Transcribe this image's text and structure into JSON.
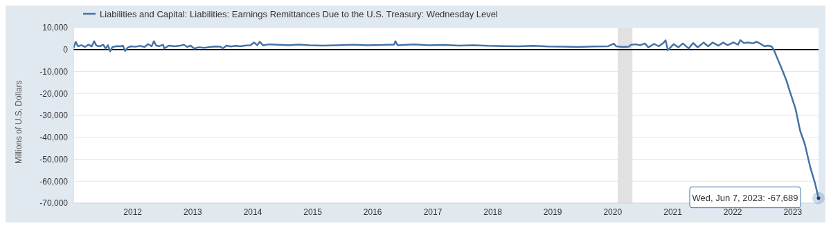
{
  "chart_data": {
    "type": "line",
    "ylabel": "Millions of U.S. Dollars",
    "x": [
      "2011-01-05",
      "2011-01-19",
      "2011-02-02",
      "2011-02-23",
      "2011-03-16",
      "2011-04-06",
      "2011-04-27",
      "2011-05-11",
      "2011-05-25",
      "2011-06-15",
      "2011-07-06",
      "2011-07-20",
      "2011-08-03",
      "2011-08-17",
      "2011-08-31",
      "2011-09-28",
      "2011-10-19",
      "2011-11-02",
      "2011-11-16",
      "2011-11-30",
      "2011-12-21",
      "2012-01-18",
      "2012-02-15",
      "2012-03-14",
      "2012-04-04",
      "2012-04-25",
      "2012-05-09",
      "2012-05-23",
      "2012-06-13",
      "2012-07-04",
      "2012-07-11",
      "2012-08-08",
      "2012-09-12",
      "2012-10-10",
      "2012-11-07",
      "2012-11-28",
      "2012-12-19",
      "2013-01-09",
      "2013-02-06",
      "2013-03-13",
      "2013-04-17",
      "2013-05-15",
      "2013-06-19",
      "2013-07-03",
      "2013-07-24",
      "2013-08-21",
      "2013-09-18",
      "2013-10-16",
      "2013-11-13",
      "2013-12-18",
      "2014-01-08",
      "2014-01-29",
      "2014-02-12",
      "2014-03-05",
      "2014-04-09",
      "2014-06-04",
      "2014-08-06",
      "2014-10-08",
      "2014-12-10",
      "2015-03-04",
      "2015-06-03",
      "2015-09-02",
      "2015-12-02",
      "2016-03-02",
      "2016-05-11",
      "2016-05-18",
      "2016-06-01",
      "2016-09-07",
      "2016-12-07",
      "2017-03-08",
      "2017-06-07",
      "2017-09-06",
      "2017-12-06",
      "2018-03-07",
      "2018-06-06",
      "2018-09-05",
      "2018-12-05",
      "2019-03-06",
      "2019-06-05",
      "2019-09-04",
      "2019-12-04",
      "2020-01-08",
      "2020-01-22",
      "2020-03-04",
      "2020-04-08",
      "2020-04-22",
      "2020-05-20",
      "2020-06-17",
      "2020-07-15",
      "2020-08-05",
      "2020-09-09",
      "2020-10-07",
      "2020-11-04",
      "2020-11-18",
      "2020-12-02",
      "2021-01-06",
      "2021-02-03",
      "2021-03-03",
      "2021-04-07",
      "2021-05-05",
      "2021-06-02",
      "2021-07-07",
      "2021-08-04",
      "2021-09-01",
      "2021-10-06",
      "2021-11-03",
      "2021-12-01",
      "2022-01-05",
      "2022-02-02",
      "2022-02-16",
      "2022-03-09",
      "2022-04-06",
      "2022-05-04",
      "2022-05-25",
      "2022-06-15",
      "2022-07-13",
      "2022-08-03",
      "2022-08-24",
      "2022-09-07",
      "2022-10-05",
      "2022-11-02",
      "2022-11-23",
      "2022-12-14",
      "2023-01-18",
      "2023-02-15",
      "2023-03-15",
      "2023-04-19",
      "2023-05-17",
      "2023-06-07"
    ],
    "series": [
      {
        "name": "Liabilities and Capital: Liabilities: Earnings Remittances Due to the U.S. Treasury: Wednesday Level",
        "color": "#4572a7",
        "values": [
          500,
          3500,
          1500,
          2000,
          1200,
          2200,
          1500,
          3800,
          1800,
          1500,
          2200,
          500,
          2000,
          -800,
          1200,
          1600,
          1500,
          1800,
          -600,
          800,
          1500,
          1300,
          1700,
          1200,
          2500,
          1500,
          3800,
          1800,
          1600,
          2200,
          500,
          1800,
          1500,
          1700,
          2200,
          1200,
          1800,
          500,
          1000,
          800,
          1200,
          1400,
          1300,
          500,
          1800,
          1400,
          1700,
          1500,
          1800,
          2000,
          3200,
          2000,
          3600,
          1900,
          2400,
          2200,
          2000,
          2300,
          2000,
          1800,
          2000,
          2200,
          2000,
          2100,
          2300,
          3800,
          2000,
          2400,
          2000,
          2100,
          1800,
          2000,
          1700,
          1600,
          1500,
          1700,
          1400,
          1300,
          1200,
          1400,
          1500,
          2700,
          1500,
          1200,
          1300,
          2200,
          2400,
          2000,
          2800,
          1000,
          2600,
          1500,
          3000,
          4200,
          -300,
          2500,
          1000,
          2800,
          500,
          3000,
          1000,
          3200,
          1500,
          3200,
          1800,
          3200,
          2000,
          3300,
          2200,
          4300,
          3000,
          3200,
          2800,
          3600,
          2800,
          1500,
          1800,
          1500,
          0,
          -5000,
          -10000,
          -14000,
          -19000,
          -27000,
          -37000,
          -43000,
          -54000,
          -61000,
          -67689
        ]
      }
    ],
    "xlim": [
      "2011-01-05",
      "2023-06-07"
    ],
    "xticks": [
      "2012",
      "2013",
      "2014",
      "2015",
      "2016",
      "2017",
      "2018",
      "2019",
      "2020",
      "2021",
      "2022",
      "2023"
    ],
    "ylim": [
      -70000,
      10000
    ],
    "yticks": [
      {
        "value": 10000,
        "label": "10,000"
      },
      0,
      {
        "value": -10000,
        "label": "-10,000"
      },
      {
        "value": -20000,
        "label": "-20,000"
      },
      {
        "value": -30000,
        "label": "-30,000"
      },
      {
        "value": -40000,
        "label": "-40,000"
      },
      {
        "value": -50000,
        "label": "-50,000"
      },
      {
        "value": -60000,
        "label": "-60,000"
      },
      {
        "value": -70000,
        "label": "-70,000"
      }
    ],
    "ref_lines": [
      {
        "axis": "y",
        "value": 0,
        "color": "#000000"
      }
    ],
    "bands": [
      {
        "axis": "x",
        "from": "2020-02-01",
        "to": "2020-04-30",
        "color": "#e1e1e1"
      }
    ],
    "annotations": [
      {
        "text": "Wed, Jun 7, 2023: -67,689",
        "x": "2023-06-07",
        "y": -67689
      }
    ],
    "grid": "y",
    "legend": "top left",
    "marker": "none",
    "line_style": "solid"
  }
}
